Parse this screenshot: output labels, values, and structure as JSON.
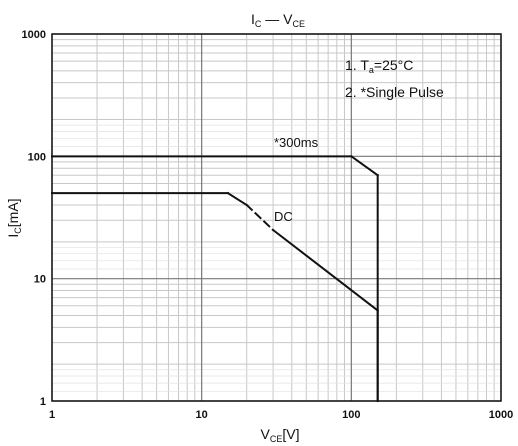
{
  "chart_data": {
    "type": "line",
    "title": "I_C — V_CE",
    "title_parts": {
      "main_a": "I",
      "sub_a": "C",
      "dash": " — ",
      "main_b": "V",
      "sub_b": "CE"
    },
    "xlabel_parts": {
      "main": "V",
      "sub": "CE",
      "unit": "[V]"
    },
    "ylabel_parts": {
      "main": "I",
      "sub": "C",
      "unit": "[mA]"
    },
    "xscale": "log",
    "yscale": "log",
    "xlim": [
      1,
      1000
    ],
    "ylim": [
      1,
      1000
    ],
    "grid": true,
    "x_ticks": [
      {
        "value": 1,
        "label": "1"
      },
      {
        "value": 10,
        "label": "10"
      },
      {
        "value": 100,
        "label": "100"
      },
      {
        "value": 1000,
        "label": "1000"
      }
    ],
    "y_ticks": [
      {
        "value": 1,
        "label": "1"
      },
      {
        "value": 10,
        "label": "10"
      },
      {
        "value": 100,
        "label": "100"
      },
      {
        "value": 1000,
        "label": "1000"
      }
    ],
    "notes": [
      {
        "prefix": "1. T",
        "sub": "a",
        "suffix": "=25°C"
      },
      {
        "prefix": "2. *Single Pulse",
        "sub": "",
        "suffix": ""
      }
    ],
    "series": [
      {
        "name": "*300ms",
        "x": [
          1,
          100,
          150,
          150
        ],
        "y": [
          100,
          100,
          70,
          1
        ],
        "dashed_segments": []
      },
      {
        "name": "DC",
        "x": [
          1,
          15,
          20,
          30,
          150,
          150
        ],
        "y": [
          50,
          50,
          40,
          25,
          5.5,
          1
        ],
        "dashed_segments": [
          [
            2,
            3
          ]
        ]
      }
    ],
    "line_color": "#111111",
    "major_grid_color": "#777777",
    "minor_grid_color": "#c8c8c8"
  }
}
